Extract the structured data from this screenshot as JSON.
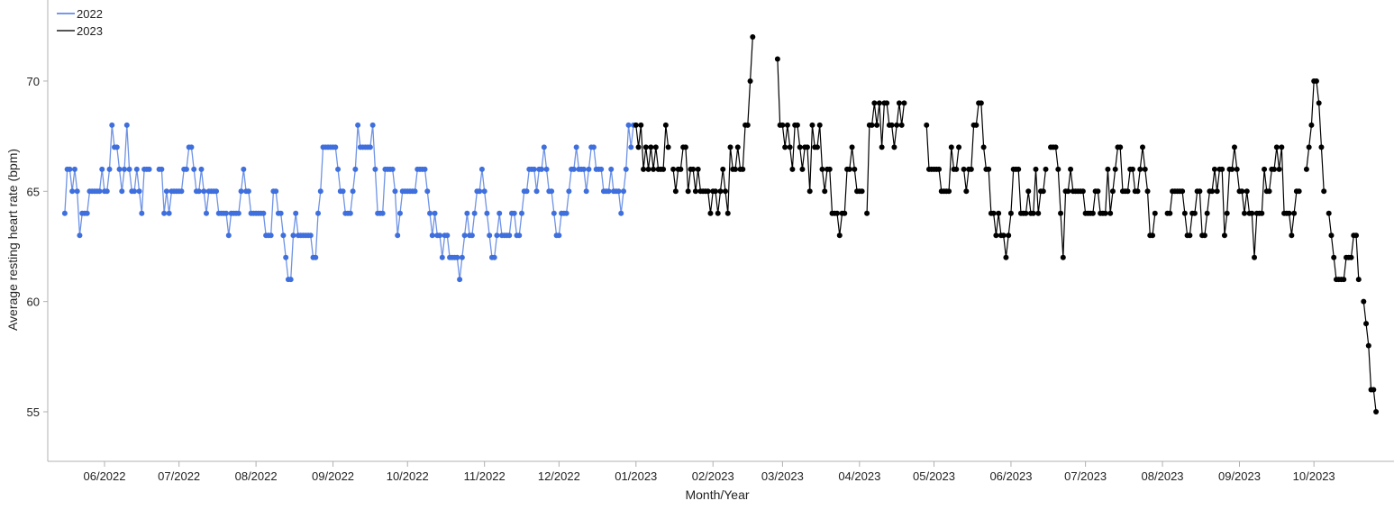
{
  "chart_data": {
    "type": "line",
    "title": "",
    "xlabel": "Month/Year",
    "ylabel": "Average resting heart rate (bpm)",
    "ylim": [
      52.75,
      73.7
    ],
    "xlim": [
      "2022-05-09",
      "2023-11-01"
    ],
    "grid": false,
    "legend_position": "top-left",
    "y_ticks": [
      55,
      60,
      65,
      70
    ],
    "x_ticks": [
      {
        "date": "2022-06-01",
        "label": "06/2022"
      },
      {
        "date": "2022-07-01",
        "label": "07/2022"
      },
      {
        "date": "2022-08-01",
        "label": "08/2022"
      },
      {
        "date": "2022-09-01",
        "label": "09/2022"
      },
      {
        "date": "2022-10-01",
        "label": "10/2022"
      },
      {
        "date": "2022-11-01",
        "label": "11/2022"
      },
      {
        "date": "2022-12-01",
        "label": "12/2022"
      },
      {
        "date": "2023-01-01",
        "label": "01/2023"
      },
      {
        "date": "2023-02-01",
        "label": "02/2023"
      },
      {
        "date": "2023-03-01",
        "label": "03/2023"
      },
      {
        "date": "2023-04-01",
        "label": "04/2023"
      },
      {
        "date": "2023-05-01",
        "label": "05/2023"
      },
      {
        "date": "2023-06-01",
        "label": "06/2023"
      },
      {
        "date": "2023-07-01",
        "label": "07/2023"
      },
      {
        "date": "2023-08-01",
        "label": "08/2023"
      },
      {
        "date": "2023-09-01",
        "label": "09/2023"
      },
      {
        "date": "2023-10-01",
        "label": "10/2023"
      }
    ],
    "series": [
      {
        "name": "2022",
        "color": "#3f6fdc",
        "start_date": "2022-05-16",
        "values": [
          64,
          66,
          66,
          65,
          66,
          65,
          63,
          64,
          64,
          64,
          65,
          65,
          65,
          65,
          65,
          66,
          65,
          65,
          66,
          68,
          67,
          67,
          66,
          65,
          66,
          68,
          66,
          65,
          65,
          66,
          65,
          64,
          66,
          66,
          66,
          null,
          null,
          null,
          66,
          66,
          64,
          65,
          64,
          65,
          65,
          65,
          65,
          65,
          66,
          66,
          67,
          67,
          66,
          65,
          65,
          66,
          65,
          64,
          65,
          65,
          65,
          65,
          64,
          64,
          64,
          64,
          63,
          64,
          64,
          64,
          64,
          65,
          66,
          65,
          65,
          64,
          64,
          64,
          64,
          64,
          64,
          63,
          63,
          63,
          65,
          65,
          64,
          64,
          63,
          62,
          61,
          61,
          63,
          64,
          63,
          63,
          63,
          63,
          63,
          63,
          62,
          62,
          64,
          65,
          67,
          67,
          67,
          67,
          67,
          67,
          66,
          65,
          65,
          64,
          64,
          64,
          65,
          66,
          68,
          67,
          67,
          67,
          67,
          67,
          68,
          66,
          64,
          64,
          64,
          66,
          66,
          66,
          66,
          65,
          63,
          64,
          65,
          65,
          65,
          65,
          65,
          65,
          66,
          66,
          66,
          66,
          65,
          64,
          63,
          64,
          63,
          63,
          62,
          63,
          63,
          62,
          62,
          62,
          62,
          61,
          62,
          63,
          64,
          63,
          63,
          64,
          65,
          65,
          66,
          65,
          64,
          63,
          62,
          62,
          63,
          64,
          63,
          63,
          63,
          63,
          64,
          64,
          63,
          63,
          64,
          65,
          65,
          66,
          66,
          66,
          65,
          66,
          66,
          67,
          66,
          65,
          65,
          64,
          63,
          63,
          64,
          64,
          64,
          65,
          66,
          66,
          67,
          66,
          66,
          66,
          65,
          66,
          67,
          67,
          66,
          66,
          66,
          65,
          65,
          65,
          66,
          65,
          65,
          65,
          64,
          65,
          66,
          68,
          67,
          68
        ]
      },
      {
        "name": "2023",
        "color": "#000000",
        "start_date": "2023-01-01",
        "values": [
          68,
          67,
          68,
          66,
          67,
          66,
          67,
          66,
          67,
          66,
          66,
          66,
          68,
          67,
          null,
          66,
          65,
          66,
          66,
          67,
          67,
          65,
          66,
          66,
          65,
          66,
          65,
          65,
          65,
          65,
          64,
          65,
          65,
          64,
          65,
          66,
          65,
          64,
          67,
          66,
          66,
          67,
          66,
          66,
          68,
          68,
          70,
          72,
          null,
          null,
          null,
          null,
          null,
          null,
          null,
          null,
          null,
          71,
          68,
          68,
          67,
          68,
          67,
          66,
          68,
          68,
          67,
          66,
          67,
          67,
          65,
          68,
          67,
          67,
          68,
          66,
          65,
          66,
          66,
          64,
          64,
          64,
          63,
          64,
          64,
          66,
          66,
          67,
          66,
          65,
          65,
          65,
          null,
          64,
          68,
          68,
          69,
          68,
          69,
          67,
          69,
          69,
          68,
          68,
          67,
          68,
          69,
          68,
          69,
          null,
          null,
          null,
          null,
          null,
          null,
          null,
          null,
          68,
          66,
          66,
          66,
          66,
          66,
          65,
          65,
          65,
          65,
          67,
          66,
          66,
          67,
          null,
          66,
          65,
          66,
          66,
          68,
          68,
          69,
          69,
          67,
          66,
          66,
          64,
          64,
          63,
          64,
          63,
          63,
          62,
          63,
          64,
          66,
          66,
          66,
          64,
          64,
          64,
          65,
          64,
          64,
          66,
          64,
          65,
          65,
          66,
          null,
          67,
          67,
          67,
          66,
          64,
          62,
          65,
          65,
          66,
          65,
          65,
          65,
          65,
          65,
          64,
          64,
          64,
          64,
          65,
          65,
          64,
          64,
          64,
          66,
          64,
          65,
          66,
          67,
          67,
          65,
          65,
          65,
          66,
          66,
          65,
          65,
          66,
          67,
          66,
          65,
          63,
          63,
          64,
          null,
          null,
          null,
          null,
          64,
          64,
          65,
          65,
          65,
          65,
          65,
          64,
          63,
          63,
          64,
          64,
          65,
          65,
          63,
          63,
          64,
          65,
          65,
          66,
          65,
          66,
          66,
          63,
          64,
          66,
          66,
          67,
          66,
          65,
          65,
          64,
          65,
          64,
          64,
          62,
          64,
          64,
          64,
          66,
          65,
          65,
          66,
          66,
          67,
          66,
          67,
          64,
          64,
          64,
          63,
          64,
          65,
          65,
          null,
          null,
          66,
          67,
          68,
          70,
          70,
          69,
          67,
          65,
          null,
          64,
          63,
          62,
          61,
          61,
          61,
          61,
          62,
          62,
          62,
          63,
          63,
          61,
          null,
          60,
          59,
          58,
          56,
          56,
          55
        ]
      }
    ]
  }
}
